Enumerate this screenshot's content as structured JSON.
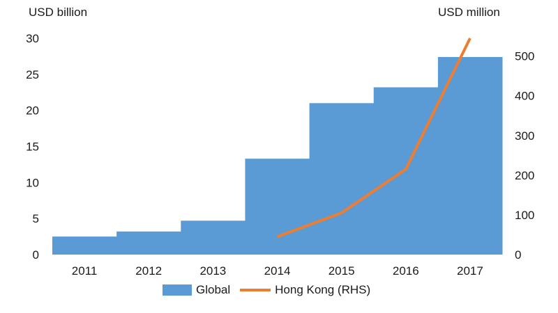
{
  "chart_data": {
    "type": "bar",
    "categories": [
      "2011",
      "2012",
      "2013",
      "2014",
      "2015",
      "2016",
      "2017"
    ],
    "series": [
      {
        "name": "Global",
        "type": "bar",
        "axis": "left",
        "color": "#5b9bd5",
        "values": [
          2.5,
          3.2,
          4.7,
          13.3,
          21.0,
          23.2,
          27.4
        ]
      },
      {
        "name": "Hong Kong (RHS)",
        "type": "line",
        "axis": "right",
        "color": "#ed7d31",
        "values": [
          null,
          null,
          null,
          45,
          105,
          215,
          545
        ]
      }
    ],
    "ylabel": "USD billion",
    "y2label": "USD million",
    "ylim": [
      0,
      30
    ],
    "yticks": [
      0,
      5,
      10,
      15,
      20,
      25,
      30
    ],
    "y2lim": [
      0,
      545
    ],
    "y2ticks": [
      0,
      100,
      200,
      300,
      400,
      500
    ],
    "grid": false,
    "legend": "bottom"
  }
}
